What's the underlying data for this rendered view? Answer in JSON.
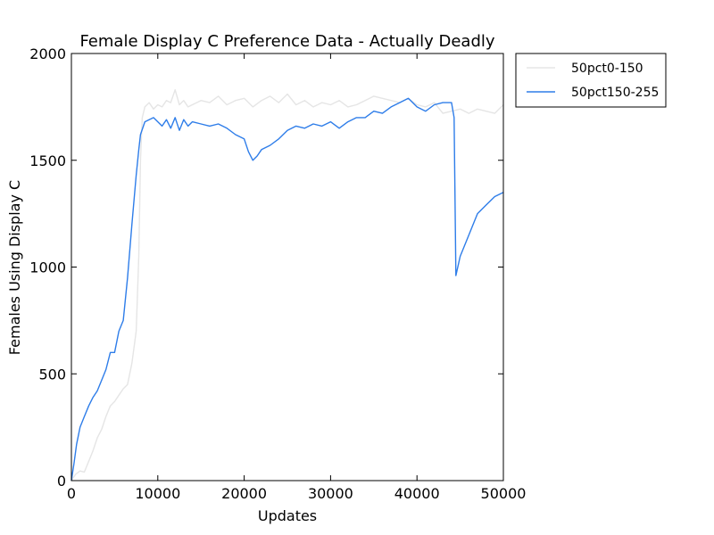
{
  "chart_data": {
    "type": "line",
    "title": "Female Display C Preference Data - Actually Deadly",
    "xlabel": "Updates",
    "ylabel": "Females Using Display C",
    "xlim": [
      0,
      50000
    ],
    "ylim": [
      0,
      2000
    ],
    "xticks": [
      "0",
      "10000",
      "20000",
      "30000",
      "40000",
      "50000"
    ],
    "yticks": [
      "0",
      "500",
      "1000",
      "1500",
      "2000"
    ],
    "grid": false,
    "legend_position": "outside-top-right",
    "series": [
      {
        "name": "50pct0-150",
        "color": "#e5e5e5",
        "x": [
          0,
          500,
          1000,
          1500,
          2000,
          2500,
          3000,
          3500,
          4000,
          4500,
          5000,
          5500,
          6000,
          6500,
          7000,
          7500,
          7800,
          8000,
          8200,
          8500,
          9000,
          9500,
          10000,
          10500,
          11000,
          11500,
          12000,
          12500,
          13000,
          13500,
          14000,
          15000,
          16000,
          17000,
          18000,
          19000,
          20000,
          21000,
          22000,
          23000,
          24000,
          25000,
          26000,
          27000,
          28000,
          29000,
          30000,
          31000,
          32000,
          33000,
          34000,
          35000,
          36000,
          37000,
          38000,
          39000,
          40000,
          41000,
          42000,
          43000,
          44000,
          45000,
          46000,
          47000,
          48000,
          49000,
          50000
        ],
        "values": [
          0,
          30,
          45,
          40,
          90,
          140,
          200,
          240,
          300,
          350,
          370,
          400,
          430,
          450,
          550,
          700,
          1050,
          1500,
          1700,
          1750,
          1770,
          1740,
          1760,
          1750,
          1780,
          1770,
          1830,
          1760,
          1780,
          1750,
          1760,
          1780,
          1770,
          1800,
          1760,
          1780,
          1790,
          1750,
          1780,
          1800,
          1770,
          1810,
          1760,
          1780,
          1750,
          1770,
          1760,
          1780,
          1750,
          1760,
          1780,
          1800,
          1790,
          1780,
          1770,
          1790,
          1760,
          1750,
          1770,
          1720,
          1730,
          1740,
          1720,
          1740,
          1730,
          1720,
          1760
        ]
      },
      {
        "name": "50pct150-255",
        "color": "#2e7de9",
        "x": [
          0,
          300,
          600,
          1000,
          1500,
          2000,
          2500,
          3000,
          3500,
          4000,
          4500,
          5000,
          5500,
          6000,
          6500,
          7000,
          7500,
          7800,
          8000,
          8500,
          9000,
          9500,
          10000,
          10500,
          11000,
          11500,
          12000,
          12500,
          13000,
          13500,
          14000,
          15000,
          16000,
          17000,
          18000,
          19000,
          20000,
          20500,
          21000,
          21500,
          22000,
          23000,
          24000,
          25000,
          26000,
          27000,
          28000,
          29000,
          30000,
          31000,
          32000,
          33000,
          34000,
          35000,
          36000,
          37000,
          38000,
          39000,
          40000,
          41000,
          42000,
          43000,
          44000,
          44300,
          44500,
          45000,
          46000,
          47000,
          48000,
          49000,
          50000
        ],
        "values": [
          0,
          80,
          170,
          250,
          300,
          350,
          390,
          420,
          470,
          520,
          600,
          600,
          700,
          750,
          950,
          1200,
          1430,
          1550,
          1620,
          1680,
          1690,
          1700,
          1680,
          1660,
          1690,
          1650,
          1700,
          1640,
          1690,
          1660,
          1680,
          1670,
          1660,
          1670,
          1650,
          1620,
          1600,
          1540,
          1500,
          1520,
          1550,
          1570,
          1600,
          1640,
          1660,
          1650,
          1670,
          1660,
          1680,
          1650,
          1680,
          1700,
          1700,
          1730,
          1720,
          1750,
          1770,
          1790,
          1750,
          1730,
          1760,
          1770,
          1770,
          1700,
          960,
          1050,
          1150,
          1250,
          1290,
          1330,
          1350
        ]
      }
    ]
  }
}
